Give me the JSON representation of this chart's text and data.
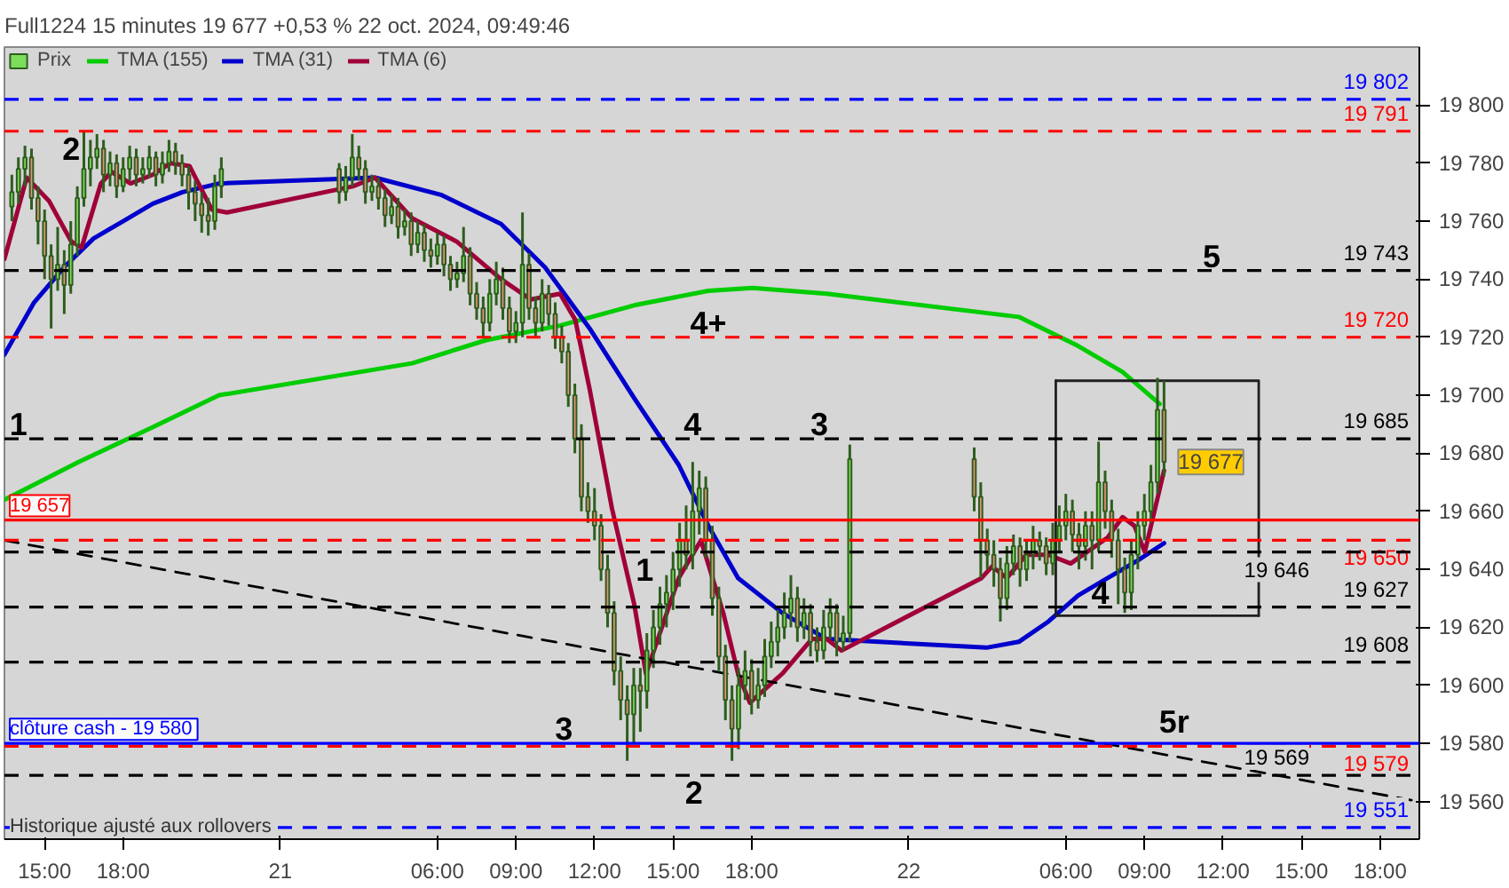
{
  "chart_data": {
    "type": "candlestick",
    "title": "Full1224 15 minutes 19 677 +0,53 % 22 oct. 2024, 09:49:46",
    "xlim": [
      "2024-10-20T13:28",
      "2024-10-22T19:30"
    ],
    "ylim": [
      19547,
      19820
    ],
    "xticks": [
      {
        "value": "2024-10-20T15:00",
        "label": "15:00"
      },
      {
        "value": "2024-10-20T18:00",
        "label": "18:00"
      },
      {
        "value": "2024-10-21",
        "label": "21"
      },
      {
        "value": "2024-10-21T06:00",
        "label": "06:00"
      },
      {
        "value": "2024-10-21T09:00",
        "label": "09:00"
      },
      {
        "value": "2024-10-21T12:00",
        "label": "12:00"
      },
      {
        "value": "2024-10-21T15:00",
        "label": "15:00"
      },
      {
        "value": "2024-10-21T18:00",
        "label": "18:00"
      },
      {
        "value": "2024-10-22",
        "label": "22"
      },
      {
        "value": "2024-10-22T06:00",
        "label": "06:00"
      },
      {
        "value": "2024-10-22T09:00",
        "label": "09:00"
      },
      {
        "value": "2024-10-22T12:00",
        "label": "12:00"
      },
      {
        "value": "2024-10-22T15:00",
        "label": "15:00"
      },
      {
        "value": "2024-10-22T18:00",
        "label": "18:00"
      }
    ],
    "yticks": [
      {
        "value": 19560,
        "label": "19 560"
      },
      {
        "value": 19580,
        "label": "19 580"
      },
      {
        "value": 19600,
        "label": "19 600"
      },
      {
        "value": 19620,
        "label": "19 620"
      },
      {
        "value": 19640,
        "label": "19 640"
      },
      {
        "value": 19660,
        "label": "19 660"
      },
      {
        "value": 19680,
        "label": "19 680"
      },
      {
        "value": 19700,
        "label": "19 700"
      },
      {
        "value": 19720,
        "label": "19 720"
      },
      {
        "value": 19740,
        "label": "19 740"
      },
      {
        "value": 19760,
        "label": "19 760"
      },
      {
        "value": 19780,
        "label": "19 780"
      },
      {
        "value": 19800,
        "label": "19 800"
      }
    ],
    "grid": false,
    "legend": "top left",
    "series": [
      {
        "name": "Prix",
        "type": "candlestick",
        "x": [
          "2024-10-20T13:45",
          "2024-10-20T14:00",
          "2024-10-20T14:15",
          "2024-10-20T14:30",
          "2024-10-20T14:45",
          "2024-10-20T15:00",
          "2024-10-20T15:15",
          "2024-10-20T15:30",
          "2024-10-20T15:45",
          "2024-10-20T16:00",
          "2024-10-20T16:15",
          "2024-10-20T16:30",
          "2024-10-20T16:45",
          "2024-10-20T17:00",
          "2024-10-20T17:15",
          "2024-10-20T17:30",
          "2024-10-20T17:45",
          "2024-10-20T18:00",
          "2024-10-20T18:15",
          "2024-10-20T18:30",
          "2024-10-20T18:45",
          "2024-10-20T19:00",
          "2024-10-20T19:15",
          "2024-10-20T19:30",
          "2024-10-20T19:45",
          "2024-10-20T20:00",
          "2024-10-20T20:15",
          "2024-10-20T20:30",
          "2024-10-20T20:45",
          "2024-10-20T21:00",
          "2024-10-20T21:15",
          "2024-10-20T21:30",
          "2024-10-20T21:45",
          "2024-10-21T02:15",
          "2024-10-21T02:30",
          "2024-10-21T02:45",
          "2024-10-21T03:00",
          "2024-10-21T03:15",
          "2024-10-21T03:30",
          "2024-10-21T03:45",
          "2024-10-21T04:00",
          "2024-10-21T04:15",
          "2024-10-21T04:30",
          "2024-10-21T04:45",
          "2024-10-21T05:00",
          "2024-10-21T05:15",
          "2024-10-21T05:30",
          "2024-10-21T05:45",
          "2024-10-21T06:00",
          "2024-10-21T06:15",
          "2024-10-21T06:30",
          "2024-10-21T06:45",
          "2024-10-21T07:00",
          "2024-10-21T07:15",
          "2024-10-21T07:30",
          "2024-10-21T07:45",
          "2024-10-21T08:00",
          "2024-10-21T08:15",
          "2024-10-21T08:30",
          "2024-10-21T08:45",
          "2024-10-21T09:00",
          "2024-10-21T09:15",
          "2024-10-21T09:30",
          "2024-10-21T09:45",
          "2024-10-21T10:00",
          "2024-10-21T10:15",
          "2024-10-21T10:30",
          "2024-10-21T10:45",
          "2024-10-21T11:00",
          "2024-10-21T11:15",
          "2024-10-21T11:30",
          "2024-10-21T11:45",
          "2024-10-21T12:00",
          "2024-10-21T12:15",
          "2024-10-21T12:30",
          "2024-10-21T12:45",
          "2024-10-21T13:00",
          "2024-10-21T13:15",
          "2024-10-21T13:30",
          "2024-10-21T13:45",
          "2024-10-21T14:00",
          "2024-10-21T14:15",
          "2024-10-21T14:30",
          "2024-10-21T14:45",
          "2024-10-21T15:00",
          "2024-10-21T15:15",
          "2024-10-21T15:30",
          "2024-10-21T15:45",
          "2024-10-21T16:00",
          "2024-10-21T16:15",
          "2024-10-21T16:30",
          "2024-10-21T16:45",
          "2024-10-21T17:00",
          "2024-10-21T17:15",
          "2024-10-21T17:30",
          "2024-10-21T17:45",
          "2024-10-21T18:00",
          "2024-10-21T18:15",
          "2024-10-21T18:30",
          "2024-10-21T18:45",
          "2024-10-21T19:00",
          "2024-10-21T19:15",
          "2024-10-21T19:30",
          "2024-10-21T19:45",
          "2024-10-21T20:00",
          "2024-10-21T20:15",
          "2024-10-21T20:30",
          "2024-10-21T20:45",
          "2024-10-21T21:00",
          "2024-10-21T21:15",
          "2024-10-21T21:30",
          "2024-10-21T21:45",
          "2024-10-22T02:30",
          "2024-10-22T02:45",
          "2024-10-22T03:00",
          "2024-10-22T03:15",
          "2024-10-22T03:30",
          "2024-10-22T03:45",
          "2024-10-22T04:00",
          "2024-10-22T04:15",
          "2024-10-22T04:30",
          "2024-10-22T04:45",
          "2024-10-22T05:00",
          "2024-10-22T05:15",
          "2024-10-22T05:30",
          "2024-10-22T05:45",
          "2024-10-22T06:00",
          "2024-10-22T06:15",
          "2024-10-22T06:30",
          "2024-10-22T06:45",
          "2024-10-22T07:00",
          "2024-10-22T07:15",
          "2024-10-22T07:30",
          "2024-10-22T07:45",
          "2024-10-22T08:00",
          "2024-10-22T08:15",
          "2024-10-22T08:30",
          "2024-10-22T08:45",
          "2024-10-22T09:00",
          "2024-10-22T09:15",
          "2024-10-22T09:30",
          "2024-10-22T09:45"
        ],
        "ohlc": [
          [
            19765,
            19776,
            19760,
            19770
          ],
          [
            19770,
            19782,
            19766,
            19778
          ],
          [
            19778,
            19786,
            19772,
            19782
          ],
          [
            19782,
            19785,
            19764,
            19768
          ],
          [
            19768,
            19772,
            19752,
            19760
          ],
          [
            19760,
            19764,
            19740,
            19748
          ],
          [
            19748,
            19752,
            19723,
            19740
          ],
          [
            19740,
            19758,
            19736,
            19745
          ],
          [
            19745,
            19750,
            19728,
            19738
          ],
          [
            19738,
            19760,
            19735,
            19752
          ],
          [
            19752,
            19772,
            19748,
            19768
          ],
          [
            19768,
            19791,
            19765,
            19778
          ],
          [
            19778,
            19788,
            19772,
            19782
          ],
          [
            19782,
            19790,
            19778,
            19785
          ],
          [
            19785,
            19788,
            19770,
            19776
          ],
          [
            19776,
            19784,
            19772,
            19780
          ],
          [
            19780,
            19783,
            19768,
            19772
          ],
          [
            19772,
            19782,
            19770,
            19778
          ],
          [
            19778,
            19786,
            19774,
            19782
          ],
          [
            19782,
            19785,
            19772,
            19776
          ],
          [
            19776,
            19782,
            19773,
            19778
          ],
          [
            19778,
            19786,
            19775,
            19782
          ],
          [
            19782,
            19784,
            19772,
            19776
          ],
          [
            19776,
            19784,
            19773,
            19780
          ],
          [
            19780,
            19788,
            19777,
            19784
          ],
          [
            19784,
            19787,
            19776,
            19780
          ],
          [
            19780,
            19783,
            19772,
            19776
          ],
          [
            19776,
            19779,
            19764,
            19770
          ],
          [
            19770,
            19774,
            19760,
            19766
          ],
          [
            19766,
            19770,
            19756,
            19762
          ],
          [
            19762,
            19768,
            19755,
            19760
          ],
          [
            19760,
            19776,
            19757,
            19772
          ],
          [
            19772,
            19782,
            19768,
            19778
          ],
          [
            19778,
            19780,
            19766,
            19770
          ],
          [
            19770,
            19779,
            19767,
            19775
          ],
          [
            19775,
            19790,
            19772,
            19782
          ],
          [
            19782,
            19786,
            19774,
            19778
          ],
          [
            19778,
            19781,
            19766,
            19770
          ],
          [
            19770,
            19776,
            19767,
            19772
          ],
          [
            19772,
            19775,
            19764,
            19768
          ],
          [
            19768,
            19771,
            19758,
            19762
          ],
          [
            19762,
            19769,
            19759,
            19765
          ],
          [
            19765,
            19768,
            19754,
            19758
          ],
          [
            19758,
            19764,
            19755,
            19760
          ],
          [
            19760,
            19763,
            19748,
            19752
          ],
          [
            19752,
            19760,
            19749,
            19756
          ],
          [
            19756,
            19759,
            19746,
            19750
          ],
          [
            19750,
            19754,
            19744,
            19748
          ],
          [
            19748,
            19756,
            19745,
            19752
          ],
          [
            19752,
            19755,
            19741,
            19745
          ],
          [
            19745,
            19748,
            19736,
            19740
          ],
          [
            19740,
            19746,
            19737,
            19742
          ],
          [
            19742,
            19758,
            19739,
            19748
          ],
          [
            19748,
            19751,
            19731,
            19735
          ],
          [
            19735,
            19739,
            19726,
            19730
          ],
          [
            19730,
            19734,
            19720,
            19725
          ],
          [
            19725,
            19740,
            19722,
            19735
          ],
          [
            19735,
            19746,
            19731,
            19740
          ],
          [
            19740,
            19744,
            19726,
            19730
          ],
          [
            19730,
            19734,
            19718,
            19722
          ],
          [
            19722,
            19729,
            19718,
            19725
          ],
          [
            19725,
            19763,
            19720,
            19745
          ],
          [
            19745,
            19749,
            19726,
            19730
          ],
          [
            19730,
            19734,
            19720,
            19725
          ],
          [
            19725,
            19740,
            19722,
            19735
          ],
          [
            19735,
            19738,
            19724,
            19728
          ],
          [
            19728,
            19732,
            19716,
            19720
          ],
          [
            19720,
            19724,
            19711,
            19715
          ],
          [
            19715,
            19718,
            19696,
            19700
          ],
          [
            19700,
            19704,
            19680,
            19685
          ],
          [
            19685,
            19690,
            19660,
            19665
          ],
          [
            19665,
            19670,
            19656,
            19660
          ],
          [
            19660,
            19668,
            19650,
            19655
          ],
          [
            19655,
            19659,
            19636,
            19640
          ],
          [
            19640,
            19645,
            19620,
            19625
          ],
          [
            19625,
            19629,
            19600,
            19605
          ],
          [
            19605,
            19610,
            19588,
            19595
          ],
          [
            19595,
            19600,
            19574,
            19590
          ],
          [
            19590,
            19606,
            19580,
            19600
          ],
          [
            19600,
            19606,
            19584,
            19598
          ],
          [
            19598,
            19618,
            19592,
            19612
          ],
          [
            19612,
            19626,
            19606,
            19620
          ],
          [
            19620,
            19634,
            19614,
            19628
          ],
          [
            19628,
            19638,
            19620,
            19632
          ],
          [
            19632,
            19646,
            19626,
            19640
          ],
          [
            19640,
            19656,
            19634,
            19650
          ],
          [
            19650,
            19662,
            19640,
            19645
          ],
          [
            19645,
            19677,
            19640,
            19660
          ],
          [
            19660,
            19674,
            19652,
            19668
          ],
          [
            19668,
            19672,
            19644,
            19650
          ],
          [
            19650,
            19655,
            19624,
            19630
          ],
          [
            19630,
            19634,
            19605,
            19610
          ],
          [
            19610,
            19614,
            19588,
            19595
          ],
          [
            19595,
            19600,
            19574,
            19585
          ],
          [
            19585,
            19606,
            19578,
            19600
          ],
          [
            19600,
            19612,
            19595,
            19605
          ],
          [
            19605,
            19609,
            19590,
            19595
          ],
          [
            19595,
            19606,
            19592,
            19600
          ],
          [
            19600,
            19616,
            19596,
            19610
          ],
          [
            19610,
            19622,
            19606,
            19615
          ],
          [
            19615,
            19626,
            19610,
            19620
          ],
          [
            19620,
            19632,
            19616,
            19625
          ],
          [
            19625,
            19638,
            19620,
            19630
          ],
          [
            19630,
            19634,
            19615,
            19620
          ],
          [
            19620,
            19630,
            19616,
            19625
          ],
          [
            19625,
            19628,
            19610,
            19615
          ],
          [
            19615,
            19620,
            19608,
            19612
          ],
          [
            19612,
            19626,
            19609,
            19620
          ],
          [
            19620,
            19630,
            19616,
            19625
          ],
          [
            19625,
            19628,
            19610,
            19615
          ],
          [
            19615,
            19624,
            19612,
            19618
          ],
          [
            19618,
            19683,
            19615,
            19678
          ],
          [
            19678,
            19682,
            19660,
            19665
          ],
          [
            19665,
            19670,
            19637,
            19650
          ],
          [
            19650,
            19654,
            19640,
            19645
          ],
          [
            19645,
            19650,
            19634,
            19640
          ],
          [
            19640,
            19644,
            19622,
            19630
          ],
          [
            19630,
            19648,
            19626,
            19642
          ],
          [
            19642,
            19652,
            19638,
            19648
          ],
          [
            19648,
            19651,
            19634,
            19640
          ],
          [
            19640,
            19650,
            19636,
            19645
          ],
          [
            19645,
            19655,
            19640,
            19650
          ],
          [
            19650,
            19653,
            19643,
            19648
          ],
          [
            19648,
            19651,
            19638,
            19642
          ],
          [
            19642,
            19656,
            19638,
            19650
          ],
          [
            19650,
            19662,
            19646,
            19655
          ],
          [
            19655,
            19666,
            19650,
            19660
          ],
          [
            19660,
            19664,
            19646,
            19652
          ],
          [
            19652,
            19656,
            19640,
            19648
          ],
          [
            19648,
            19660,
            19643,
            19655
          ],
          [
            19655,
            19660,
            19640,
            19650
          ],
          [
            19650,
            19684,
            19646,
            19670
          ],
          [
            19670,
            19674,
            19654,
            19660
          ],
          [
            19660,
            19664,
            19644,
            19650
          ],
          [
            19650,
            19654,
            19628,
            19640
          ],
          [
            19640,
            19644,
            19625,
            19632
          ],
          [
            19632,
            19650,
            19626,
            19645
          ],
          [
            19645,
            19660,
            19640,
            19655
          ],
          [
            19655,
            19666,
            19650,
            19660
          ],
          [
            19660,
            19676,
            19656,
            19670
          ],
          [
            19670,
            19706,
            19666,
            19695
          ],
          [
            19695,
            19705,
            19672,
            19677
          ]
        ]
      },
      {
        "name": "TMA (155)",
        "type": "line",
        "color": "#00cc00",
        "x": [
          "2024-10-20T13:28",
          "2024-10-20T16:18",
          "2024-10-20T19:08",
          "2024-10-20T21:40",
          "2024-10-21T05:02",
          "2024-10-21T07:52",
          "2024-10-21T10:41",
          "2024-10-21T13:31",
          "2024-10-21T16:21",
          "2024-10-21T18:02",
          "2024-10-21T20:52",
          "2024-10-22T04:12",
          "2024-10-22T06:28",
          "2024-10-22T08:10",
          "2024-10-22T09:35"
        ],
        "values": [
          19664,
          19677,
          19689,
          19700,
          19711,
          19719,
          19724,
          19731,
          19736,
          19737,
          19735,
          19727,
          19717,
          19708,
          19697
        ]
      },
      {
        "name": "TMA (31)",
        "type": "line",
        "color": "#0000cc",
        "x": [
          "2024-10-20T13:28",
          "2024-10-20T14:36",
          "2024-10-20T15:44",
          "2024-10-20T16:52",
          "2024-10-20T18:00",
          "2024-10-20T19:08",
          "2024-10-20T20:16",
          "2024-10-20T21:40",
          "2024-10-21T03:37",
          "2024-10-21T06:10",
          "2024-10-21T08:26",
          "2024-10-21T10:07",
          "2024-10-21T11:49",
          "2024-10-21T13:31",
          "2024-10-21T15:13",
          "2024-10-21T16:21",
          "2024-10-21T17:29",
          "2024-10-21T19:10",
          "2024-10-21T20:52",
          "2024-10-22T02:58",
          "2024-10-22T04:12",
          "2024-10-22T05:20",
          "2024-10-22T06:28",
          "2024-10-22T07:36",
          "2024-10-22T08:44",
          "2024-10-22T09:45"
        ],
        "values": [
          19714,
          19732,
          19744,
          19754,
          19760,
          19766,
          19770,
          19773,
          19775,
          19769,
          19759,
          19744,
          19723,
          19699,
          19676,
          19655,
          19637,
          19625,
          19616,
          19613,
          19615,
          19622,
          19631,
          19637,
          19643,
          19649
        ]
      },
      {
        "name": "TMA (6)",
        "type": "line",
        "color": "#a0003a",
        "x": [
          "2024-10-20T13:28",
          "2024-10-20T14:19",
          "2024-10-20T15:10",
          "2024-10-20T16:01",
          "2024-10-20T16:25",
          "2024-10-20T17:09",
          "2024-10-20T17:33",
          "2024-10-20T18:17",
          "2024-10-20T19:08",
          "2024-10-20T19:49",
          "2024-10-20T20:32",
          "2024-10-20T21:23",
          "2024-10-20T21:58",
          "2024-10-21T02:46",
          "2024-10-21T03:37",
          "2024-10-21T05:02",
          "2024-10-21T06:44",
          "2024-10-21T08:26",
          "2024-10-21T09:34",
          "2024-10-21T10:41",
          "2024-10-21T11:16",
          "2024-10-21T11:49",
          "2024-10-21T12:40",
          "2024-10-21T13:31",
          "2024-10-21T13:58",
          "2024-10-21T15:13",
          "2024-10-21T16:04",
          "2024-10-21T16:55",
          "2024-10-21T17:29",
          "2024-10-21T17:56",
          "2024-10-21T19:10",
          "2024-10-21T20:18",
          "2024-10-21T20:52",
          "2024-10-21T21:26",
          "2024-10-22T02:47",
          "2024-10-22T03:11",
          "2024-10-22T03:45",
          "2024-10-22T04:29",
          "2024-10-22T05:20",
          "2024-10-22T06:11",
          "2024-10-22T07:36",
          "2024-10-22T08:10",
          "2024-10-22T08:37",
          "2024-10-22T09:01",
          "2024-10-22T09:45"
        ],
        "values": [
          19747,
          19775,
          19767,
          19753,
          19751,
          19773,
          19777,
          19773,
          19776,
          19780,
          19779,
          19764,
          19763,
          19772,
          19775,
          19761,
          19753,
          19740,
          19733,
          19735,
          19726,
          19702,
          19661,
          19628,
          19604,
          19637,
          19650,
          19625,
          19604,
          19594,
          19604,
          19616,
          19616,
          19612,
          19637,
          19641,
          19637,
          19645,
          19645,
          19642,
          19651,
          19658,
          19655,
          19646,
          19674
        ]
      },
      {
        "type": "line",
        "color": "#000000",
        "line_style": "dashed",
        "x": [
          "2024-10-20T13:28",
          "2024-10-22T19:28"
        ],
        "values": [
          19650,
          19560
        ]
      },
      {
        "type": "line",
        "color": "#202020",
        "x": [
          "2024-10-22T05:37",
          "2024-10-22T13:22",
          "2024-10-22T13:22"
        ],
        "values": [
          19705,
          19705,
          19624
        ]
      },
      {
        "type": "line",
        "color": "#202020",
        "x": [
          "2024-10-22T05:37",
          "2024-10-22T05:37",
          "2024-10-22T13:22"
        ],
        "values": [
          19705,
          19624,
          19624
        ]
      }
    ],
    "ref_lines": [
      {
        "axis": "y",
        "value": 19802,
        "label": "19 802",
        "color": "#0000ff",
        "line_style": "dashed"
      },
      {
        "axis": "y",
        "value": 19791,
        "label": "19 791",
        "color": "#ff0000",
        "line_style": "dashed"
      },
      {
        "axis": "y",
        "value": 19743,
        "label": "19 743",
        "color": "#000000",
        "line_style": "dashed"
      },
      {
        "axis": "y",
        "value": 19720,
        "label": "19 720",
        "color": "#ff0000",
        "line_style": "dashed"
      },
      {
        "axis": "y",
        "value": 19685,
        "label": "19 685",
        "color": "#000000",
        "line_style": "dashed"
      },
      {
        "axis": "y",
        "value": 19657,
        "label": "19 657",
        "color": "#ff0000",
        "line_style": "solid"
      },
      {
        "axis": "y",
        "value": 19650,
        "label": "19 650",
        "color": "#ff0000",
        "line_style": "dashed"
      },
      {
        "axis": "y",
        "value": 19646,
        "label": "19 646",
        "color": "#000000",
        "line_style": "dashed"
      },
      {
        "axis": "y",
        "value": 19627,
        "label": "19 627",
        "color": "#000000",
        "line_style": "dashed"
      },
      {
        "axis": "y",
        "value": 19608,
        "label": "19 608",
        "color": "#000000",
        "line_style": "dashed"
      },
      {
        "axis": "y",
        "value": 19580,
        "label": "clôture cash -  19 580",
        "color": "#0000ff",
        "line_style": "solid"
      },
      {
        "axis": "y",
        "value": 19579,
        "label": "19 579",
        "color": "#ff0000",
        "line_style": "dashed"
      },
      {
        "axis": "y",
        "value": 19569,
        "label": "19 569",
        "color": "#000000",
        "line_style": "dashed"
      },
      {
        "axis": "y",
        "value": 19551,
        "label": "19 551",
        "color": "#0000ff",
        "line_style": "dashed"
      }
    ],
    "annotations": [
      {
        "text": "1",
        "x": "2024-10-20T14:00",
        "y": 19685
      },
      {
        "text": "2",
        "x": "2024-10-20T16:01",
        "y": 19791
      },
      {
        "text": "3",
        "x": "2024-10-21T10:50",
        "y": 19580
      },
      {
        "text": "4",
        "x": "2024-10-21T15:45",
        "y": 19685
      },
      {
        "text": "4+",
        "x": "2024-10-21T16:21",
        "y": 19720
      },
      {
        "text": "5r",
        "x": "2024-10-22T10:08",
        "y": 19580
      },
      {
        "text": "1",
        "x": "2024-10-21T13:55",
        "y": 19646
      },
      {
        "text": "2",
        "x": "2024-10-21T15:48",
        "y": 19569
      },
      {
        "text": "3",
        "x": "2024-10-21T20:35",
        "y": 19685
      },
      {
        "text": "4",
        "x": "2024-10-22T07:19",
        "y": 19627
      },
      {
        "text": "5",
        "x": "2024-10-22T11:34",
        "y": 19743
      },
      {
        "text": "19 677",
        "x": "2024-10-22T09:45",
        "y": 19677
      },
      "Historique ajusté aux rollovers"
    ]
  }
}
